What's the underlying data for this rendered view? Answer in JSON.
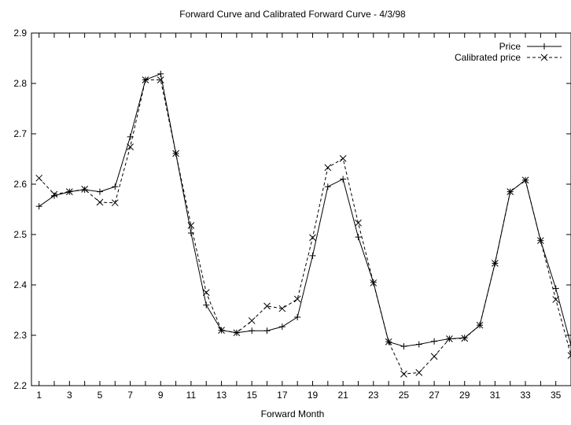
{
  "chart_data": {
    "type": "line",
    "title": "Forward Curve and Calibrated Forward Curve - 4/3/98",
    "xlabel": "Forward Month",
    "ylabel": "",
    "xlim": [
      0.5,
      36
    ],
    "ylim": [
      2.2,
      2.9
    ],
    "x_ticks": [
      1,
      3,
      5,
      7,
      9,
      11,
      13,
      15,
      17,
      19,
      21,
      23,
      25,
      27,
      29,
      31,
      33,
      35
    ],
    "y_ticks": [
      2.2,
      2.3,
      2.4,
      2.5,
      2.6,
      2.7,
      2.8,
      2.9
    ],
    "x_tick_labels": [
      "1",
      "3",
      "5",
      "7",
      "9",
      "11",
      "13",
      "15",
      "17",
      "19",
      "21",
      "23",
      "25",
      "27",
      "29",
      "31",
      "33",
      "35"
    ],
    "y_tick_labels": [
      "2.2",
      "2.3",
      "2.4",
      "2.5",
      "2.6",
      "2.7",
      "2.8",
      "2.9"
    ],
    "grid": false,
    "legend_position": "top-right",
    "x": [
      1,
      2,
      3,
      4,
      5,
      6,
      7,
      8,
      9,
      10,
      11,
      12,
      13,
      14,
      15,
      16,
      17,
      18,
      19,
      20,
      21,
      22,
      23,
      24,
      25,
      26,
      27,
      28,
      29,
      30,
      31,
      32,
      33,
      34,
      35,
      36
    ],
    "series": [
      {
        "name": "Price",
        "line_style": "solid",
        "marker": "+",
        "color": "#000000",
        "values": [
          2.556,
          2.577,
          2.585,
          2.589,
          2.585,
          2.595,
          2.694,
          2.807,
          2.819,
          2.661,
          2.503,
          2.36,
          2.31,
          2.305,
          2.309,
          2.309,
          2.317,
          2.336,
          2.458,
          2.595,
          2.61,
          2.495,
          2.405,
          2.287,
          2.278,
          2.282,
          2.288,
          2.293,
          2.295,
          2.32,
          2.443,
          2.585,
          2.608,
          2.488,
          2.393,
          2.28
        ]
      },
      {
        "name": "Calibrated price",
        "line_style": "dashed",
        "marker": "x",
        "color": "#000000",
        "values": [
          2.612,
          2.58,
          2.585,
          2.59,
          2.564,
          2.563,
          2.674,
          2.807,
          2.807,
          2.661,
          2.518,
          2.385,
          2.31,
          2.305,
          2.329,
          2.358,
          2.353,
          2.372,
          2.494,
          2.633,
          2.651,
          2.523,
          2.404,
          2.287,
          2.223,
          2.226,
          2.258,
          2.293,
          2.294,
          2.32,
          2.443,
          2.585,
          2.608,
          2.488,
          2.371,
          2.26
        ]
      }
    ]
  }
}
